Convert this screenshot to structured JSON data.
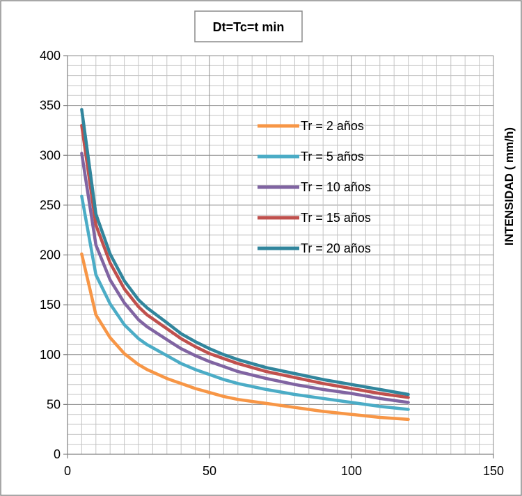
{
  "chart_data": {
    "type": "line",
    "title": "Dt=Tc=t min",
    "xlabel": "",
    "ylabel": "INTENSIDAD ( mm/h)",
    "xlim": [
      0,
      150
    ],
    "ylim": [
      0,
      400
    ],
    "x_ticks": [
      0,
      50,
      100,
      150
    ],
    "y_ticks": [
      0,
      50,
      100,
      150,
      200,
      250,
      300,
      350,
      400
    ],
    "grid": true,
    "legend_position": "top-right",
    "x": [
      5,
      10,
      15,
      20,
      25,
      28,
      35,
      40,
      45,
      50,
      55,
      60,
      70,
      80,
      90,
      100,
      110,
      120
    ],
    "series": [
      {
        "name": "Tr = 2 años",
        "color": "#F79646",
        "values": [
          201,
          140,
          117,
          101,
          90,
          85,
          76,
          71,
          66,
          62,
          58,
          55,
          51,
          47,
          43,
          40,
          37,
          35
        ]
      },
      {
        "name": "Tr = 5 años",
        "color": "#4BACC6",
        "values": [
          259,
          180,
          151,
          130,
          116,
          110,
          99,
          91,
          85,
          80,
          75,
          71,
          65,
          60,
          56,
          52,
          48,
          45
        ]
      },
      {
        "name": "Tr = 10 años",
        "color": "#8064A2",
        "values": [
          302,
          210,
          175,
          152,
          135,
          128,
          115,
          106,
          99,
          93,
          88,
          83,
          76,
          70,
          65,
          61,
          56,
          52
        ]
      },
      {
        "name": "Tr = 15 años",
        "color": "#C0504D",
        "values": [
          330,
          230,
          192,
          166,
          148,
          140,
          126,
          116,
          108,
          101,
          96,
          91,
          83,
          77,
          71,
          66,
          61,
          57
        ]
      },
      {
        "name": "Tr = 20 años",
        "color": "#31859C",
        "values": [
          346,
          241,
          201,
          174,
          155,
          147,
          132,
          121,
          113,
          106,
          100,
          95,
          87,
          81,
          75,
          70,
          65,
          60
        ]
      }
    ]
  }
}
